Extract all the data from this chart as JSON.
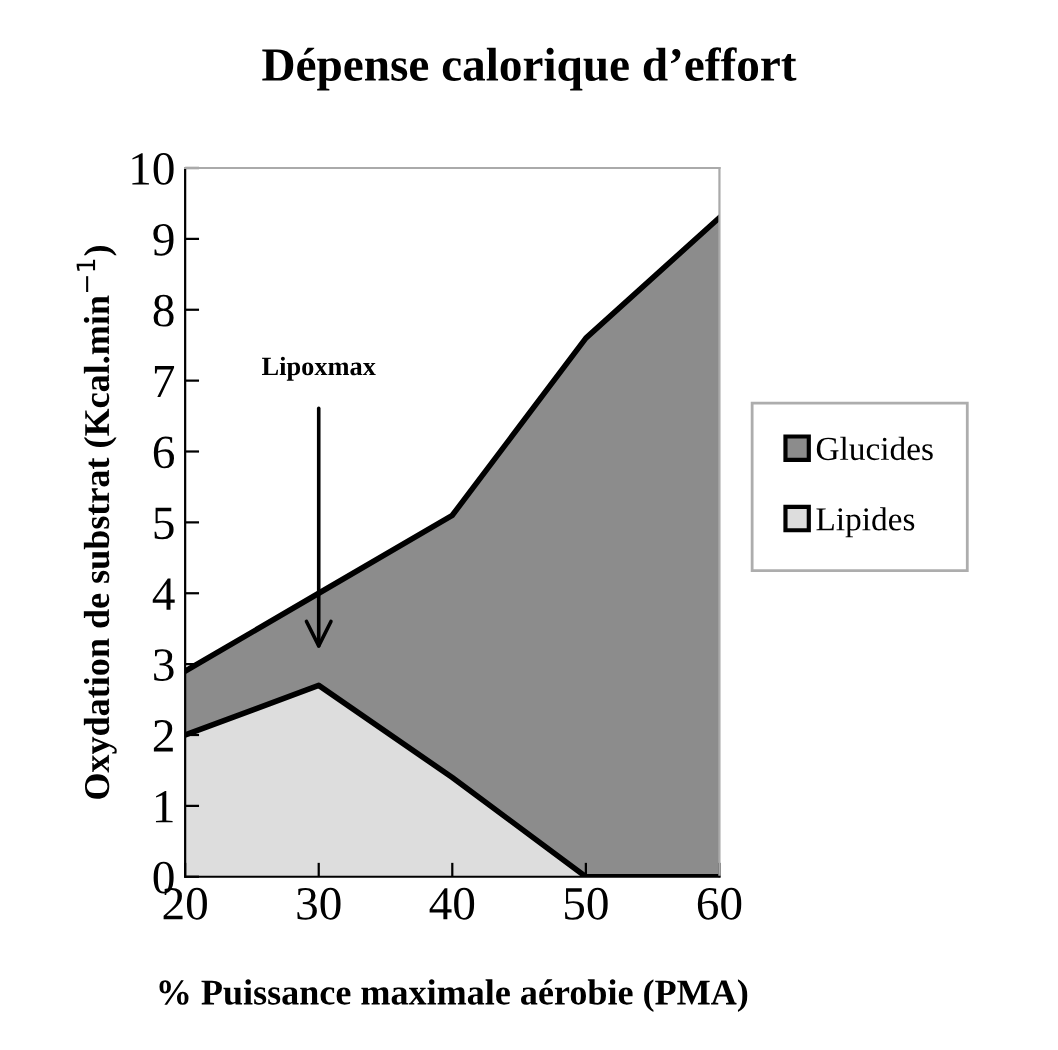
{
  "chart_data": {
    "type": "area",
    "title": "Dépense calorique d’effort",
    "xlabel": "% Puissance maximale aérobie (PMA)",
    "ylabel": "Oxydation de substrat (Kcal.min$^{−1}$)",
    "x": [
      20,
      30,
      40,
      50,
      60
    ],
    "stacked": true,
    "series": [
      {
        "name": "Lipides",
        "color": "#dddddd",
        "values": [
          2.0,
          2.7,
          1.4,
          0,
          0
        ]
      },
      {
        "name": "Glucides",
        "color": "#8c8c8c",
        "values": [
          0.9,
          1.3,
          3.7,
          7.6,
          9.3
        ]
      }
    ],
    "xlim": [
      20,
      60
    ],
    "xticks": [
      20,
      30,
      40,
      50,
      60
    ],
    "ylim": [
      0,
      10
    ],
    "yticks": [
      0,
      1,
      2,
      3,
      4,
      5,
      6,
      7,
      8,
      9,
      10
    ],
    "annotations": [
      "Lipoxmax"
    ],
    "grid": false,
    "legend": "right"
  }
}
